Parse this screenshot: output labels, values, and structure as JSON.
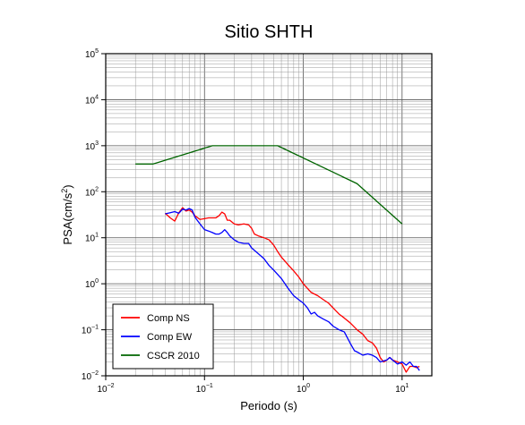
{
  "chart_data": {
    "type": "line",
    "title": "Sitio SHTH",
    "xlabel": "Periodo (s)",
    "ylabel_main": "PSA(cm/s",
    "ylabel_sup": "2",
    "ylabel_end": ")",
    "x_scale": "log",
    "y_scale": "log",
    "xlim": [
      0.01,
      20
    ],
    "ylim": [
      0.01,
      100000
    ],
    "grid": true,
    "legend_position": "bottom-left",
    "x_ticks": [
      {
        "value": 0.01,
        "base": "10",
        "exp": "−2"
      },
      {
        "value": 0.1,
        "base": "10",
        "exp": "−1"
      },
      {
        "value": 1,
        "base": "10",
        "exp": "0"
      },
      {
        "value": 10,
        "base": "10",
        "exp": "1"
      }
    ],
    "y_ticks": [
      {
        "value": 0.01,
        "base": "10",
        "exp": "−2"
      },
      {
        "value": 0.1,
        "base": "10",
        "exp": "−1"
      },
      {
        "value": 1,
        "base": "10",
        "exp": "0"
      },
      {
        "value": 10,
        "base": "10",
        "exp": "1"
      },
      {
        "value": 100,
        "base": "10",
        "exp": "2"
      },
      {
        "value": 1000,
        "base": "10",
        "exp": "3"
      },
      {
        "value": 10000,
        "base": "10",
        "exp": "4"
      },
      {
        "value": 100000,
        "base": "10",
        "exp": "5"
      }
    ],
    "series": [
      {
        "name": "Comp NS",
        "color": "#ff0000",
        "points": [
          [
            0.04,
            34
          ],
          [
            0.045,
            27
          ],
          [
            0.05,
            23
          ],
          [
            0.055,
            35
          ],
          [
            0.06,
            45
          ],
          [
            0.065,
            38
          ],
          [
            0.07,
            40
          ],
          [
            0.075,
            36
          ],
          [
            0.08,
            30
          ],
          [
            0.09,
            25
          ],
          [
            0.1,
            26
          ],
          [
            0.11,
            27
          ],
          [
            0.12,
            27
          ],
          [
            0.13,
            27
          ],
          [
            0.14,
            30
          ],
          [
            0.15,
            36
          ],
          [
            0.16,
            33
          ],
          [
            0.17,
            24
          ],
          [
            0.18,
            24
          ],
          [
            0.2,
            20
          ],
          [
            0.22,
            19
          ],
          [
            0.25,
            20
          ],
          [
            0.28,
            19
          ],
          [
            0.3,
            16
          ],
          [
            0.32,
            12
          ],
          [
            0.35,
            11
          ],
          [
            0.4,
            10
          ],
          [
            0.45,
            9
          ],
          [
            0.5,
            7
          ],
          [
            0.55,
            5
          ],
          [
            0.6,
            3.8
          ],
          [
            0.7,
            2.6
          ],
          [
            0.8,
            1.9
          ],
          [
            0.9,
            1.4
          ],
          [
            1.0,
            1.0
          ],
          [
            1.1,
            0.8
          ],
          [
            1.2,
            0.65
          ],
          [
            1.4,
            0.55
          ],
          [
            1.6,
            0.45
          ],
          [
            1.8,
            0.38
          ],
          [
            2.0,
            0.3
          ],
          [
            2.3,
            0.22
          ],
          [
            2.6,
            0.18
          ],
          [
            3.0,
            0.14
          ],
          [
            3.5,
            0.1
          ],
          [
            4.0,
            0.08
          ],
          [
            4.5,
            0.058
          ],
          [
            5.0,
            0.052
          ],
          [
            5.5,
            0.04
          ],
          [
            6.0,
            0.025
          ],
          [
            6.5,
            0.02
          ],
          [
            7.0,
            0.022
          ],
          [
            7.5,
            0.025
          ],
          [
            8.0,
            0.022
          ],
          [
            9.0,
            0.02
          ],
          [
            10,
            0.018
          ],
          [
            11,
            0.012
          ],
          [
            12,
            0.016
          ],
          [
            13,
            0.016
          ],
          [
            14,
            0.015
          ],
          [
            15,
            0.016
          ]
        ]
      },
      {
        "name": "Comp EW",
        "color": "#0000ff",
        "points": [
          [
            0.04,
            33
          ],
          [
            0.045,
            35
          ],
          [
            0.05,
            37
          ],
          [
            0.055,
            34
          ],
          [
            0.06,
            42
          ],
          [
            0.065,
            40
          ],
          [
            0.07,
            43
          ],
          [
            0.075,
            40
          ],
          [
            0.08,
            28
          ],
          [
            0.09,
            20
          ],
          [
            0.1,
            15
          ],
          [
            0.11,
            14
          ],
          [
            0.12,
            13
          ],
          [
            0.13,
            12
          ],
          [
            0.14,
            12
          ],
          [
            0.15,
            13
          ],
          [
            0.16,
            15
          ],
          [
            0.17,
            13
          ],
          [
            0.18,
            11
          ],
          [
            0.2,
            9
          ],
          [
            0.22,
            8
          ],
          [
            0.25,
            7.5
          ],
          [
            0.28,
            7.5
          ],
          [
            0.3,
            6
          ],
          [
            0.35,
            4.5
          ],
          [
            0.4,
            3.5
          ],
          [
            0.45,
            2.5
          ],
          [
            0.5,
            2.0
          ],
          [
            0.6,
            1.3
          ],
          [
            0.7,
            0.8
          ],
          [
            0.8,
            0.55
          ],
          [
            0.9,
            0.45
          ],
          [
            1.0,
            0.38
          ],
          [
            1.1,
            0.3
          ],
          [
            1.2,
            0.22
          ],
          [
            1.3,
            0.24
          ],
          [
            1.4,
            0.2
          ],
          [
            1.6,
            0.17
          ],
          [
            1.8,
            0.15
          ],
          [
            2.0,
            0.12
          ],
          [
            2.3,
            0.1
          ],
          [
            2.6,
            0.09
          ],
          [
            3.0,
            0.05
          ],
          [
            3.3,
            0.035
          ],
          [
            3.6,
            0.032
          ],
          [
            4.0,
            0.028
          ],
          [
            4.5,
            0.03
          ],
          [
            5.0,
            0.028
          ],
          [
            5.5,
            0.025
          ],
          [
            6.0,
            0.02
          ],
          [
            7.0,
            0.022
          ],
          [
            7.5,
            0.025
          ],
          [
            8.0,
            0.022
          ],
          [
            9.0,
            0.018
          ],
          [
            10,
            0.02
          ],
          [
            11,
            0.017
          ],
          [
            12,
            0.02
          ],
          [
            13,
            0.016
          ],
          [
            14,
            0.016
          ],
          [
            15,
            0.013
          ]
        ]
      },
      {
        "name": "CSCR 2010",
        "color": "#006400",
        "points": [
          [
            0.02,
            400
          ],
          [
            0.03,
            400
          ],
          [
            0.12,
            1000
          ],
          [
            0.55,
            1000
          ],
          [
            3.5,
            150
          ],
          [
            10,
            20
          ]
        ]
      }
    ]
  }
}
